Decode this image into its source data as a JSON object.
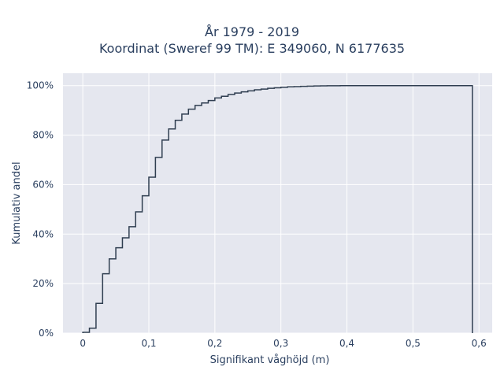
{
  "chart_data": {
    "type": "line",
    "subtype": "empirical-cdf-step",
    "title_lines": [
      "År 1979 - 2019",
      "Koordinat (Sweref 99 TM): E 349060, N 6177635"
    ],
    "xlabel": "Signifikant våghöjd (m)",
    "ylabel": "Kumulativ andel",
    "xlim": [
      -0.03,
      0.62
    ],
    "ylim": [
      0,
      1.05
    ],
    "x_ticks": [
      0,
      0.1,
      0.2,
      0.3,
      0.4,
      0.5,
      0.6
    ],
    "x_tick_labels": [
      "0",
      "0,1",
      "0,2",
      "0,3",
      "0,4",
      "0,5",
      "0,6"
    ],
    "y_ticks": [
      0,
      0.2,
      0.4,
      0.6,
      0.8,
      1.0
    ],
    "y_tick_labels": [
      "0%",
      "20%",
      "40%",
      "60%",
      "80%",
      "100%"
    ],
    "grid": true,
    "line_color": "#2f3e50",
    "background_color": "#e5e7ef",
    "series": [
      {
        "x": [
          0.0,
          0.01,
          0.02,
          0.03,
          0.04,
          0.05,
          0.06,
          0.07,
          0.08,
          0.09,
          0.1,
          0.11,
          0.12,
          0.13,
          0.14,
          0.15,
          0.16,
          0.17,
          0.18,
          0.19,
          0.2,
          0.21,
          0.22,
          0.23,
          0.24,
          0.25,
          0.26,
          0.27,
          0.28,
          0.29,
          0.3,
          0.31,
          0.32,
          0.33,
          0.34,
          0.35,
          0.36,
          0.37,
          0.38,
          0.39,
          0.4,
          0.59
        ],
        "y": [
          0.003,
          0.02,
          0.12,
          0.24,
          0.3,
          0.345,
          0.385,
          0.43,
          0.49,
          0.555,
          0.63,
          0.71,
          0.78,
          0.825,
          0.86,
          0.885,
          0.905,
          0.92,
          0.93,
          0.94,
          0.95,
          0.957,
          0.964,
          0.97,
          0.975,
          0.979,
          0.983,
          0.986,
          0.989,
          0.991,
          0.993,
          0.995,
          0.996,
          0.997,
          0.998,
          0.9985,
          0.999,
          0.9993,
          0.9995,
          0.9997,
          1.0,
          1.0
        ]
      }
    ]
  }
}
